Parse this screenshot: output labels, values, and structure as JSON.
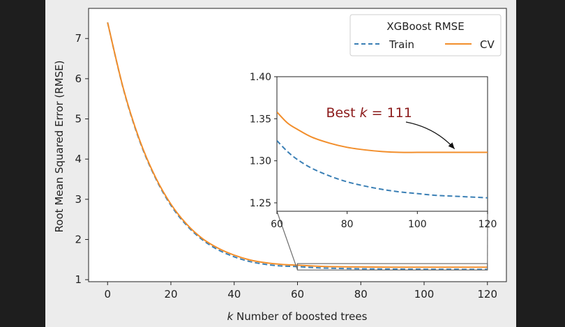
{
  "chart_data": {
    "type": "line",
    "title": "",
    "xlabel": "k Number of boosted trees",
    "xlabel_k": "k",
    "xlabel_rest": " Number of boosted trees",
    "ylabel": "Root Mean Squared Error (RMSE)",
    "xlim": [
      -6,
      126
    ],
    "ylim": [
      0.95,
      7.75
    ],
    "xticks": [
      0,
      20,
      40,
      60,
      80,
      100,
      120
    ],
    "yticks": [
      1,
      2,
      3,
      4,
      5,
      6,
      7
    ],
    "legend": {
      "title": "XGBoost RMSE",
      "placement": "top-right",
      "entries": [
        "Train",
        "CV"
      ]
    },
    "series": [
      {
        "name": "Train",
        "style": "dashed",
        "color": "#3a7fb5",
        "x": [
          0,
          5,
          10,
          15,
          20,
          25,
          30,
          35,
          40,
          45,
          50,
          55,
          60,
          65,
          70,
          80,
          90,
          100,
          110,
          120
        ],
        "values": [
          7.4,
          5.74,
          4.48,
          3.55,
          2.85,
          2.35,
          1.99,
          1.74,
          1.57,
          1.45,
          1.38,
          1.34,
          1.325,
          1.3,
          1.285,
          1.27,
          1.263,
          1.259,
          1.257,
          1.255
        ]
      },
      {
        "name": "CV",
        "style": "solid",
        "color": "#f28e2b",
        "x": [
          0,
          5,
          10,
          15,
          20,
          25,
          30,
          35,
          40,
          45,
          50,
          55,
          60,
          65,
          70,
          80,
          90,
          100,
          110,
          120
        ],
        "values": [
          7.4,
          5.75,
          4.5,
          3.57,
          2.88,
          2.38,
          2.02,
          1.78,
          1.61,
          1.49,
          1.42,
          1.38,
          1.36,
          1.34,
          1.326,
          1.316,
          1.311,
          1.31,
          1.31,
          1.311
        ]
      }
    ],
    "inset": {
      "xlim": [
        60,
        120
      ],
      "ylim": [
        1.24,
        1.4
      ],
      "xticks": [
        60,
        80,
        100,
        120
      ],
      "yticks": [
        1.25,
        1.3,
        1.35,
        1.4
      ],
      "ytick_labels": [
        "1.25",
        "1.30",
        "1.35",
        "1.40"
      ],
      "zoom_box": {
        "x": [
          60,
          120
        ],
        "y": [
          1.24,
          1.4
        ]
      },
      "train": {
        "x": [
          60,
          63,
          66,
          70,
          75,
          80,
          85,
          90,
          95,
          100,
          105,
          110,
          115,
          120
        ],
        "values": [
          1.324,
          1.311,
          1.301,
          1.291,
          1.282,
          1.275,
          1.27,
          1.266,
          1.263,
          1.261,
          1.259,
          1.258,
          1.257,
          1.256
        ]
      },
      "cv": {
        "x": [
          60,
          63,
          66,
          70,
          75,
          80,
          85,
          90,
          95,
          100,
          105,
          110,
          115,
          120
        ],
        "values": [
          1.358,
          1.345,
          1.337,
          1.328,
          1.321,
          1.316,
          1.313,
          1.311,
          1.31,
          1.31,
          1.31,
          1.31,
          1.31,
          1.31
        ]
      },
      "annotation": {
        "prefix": "Best ",
        "k": "k",
        "suffix": " = 111",
        "target_x": 110,
        "target_y": 1.31,
        "text_x": 74,
        "text_y": 1.357,
        "color": "#8b1a1a"
      }
    }
  }
}
